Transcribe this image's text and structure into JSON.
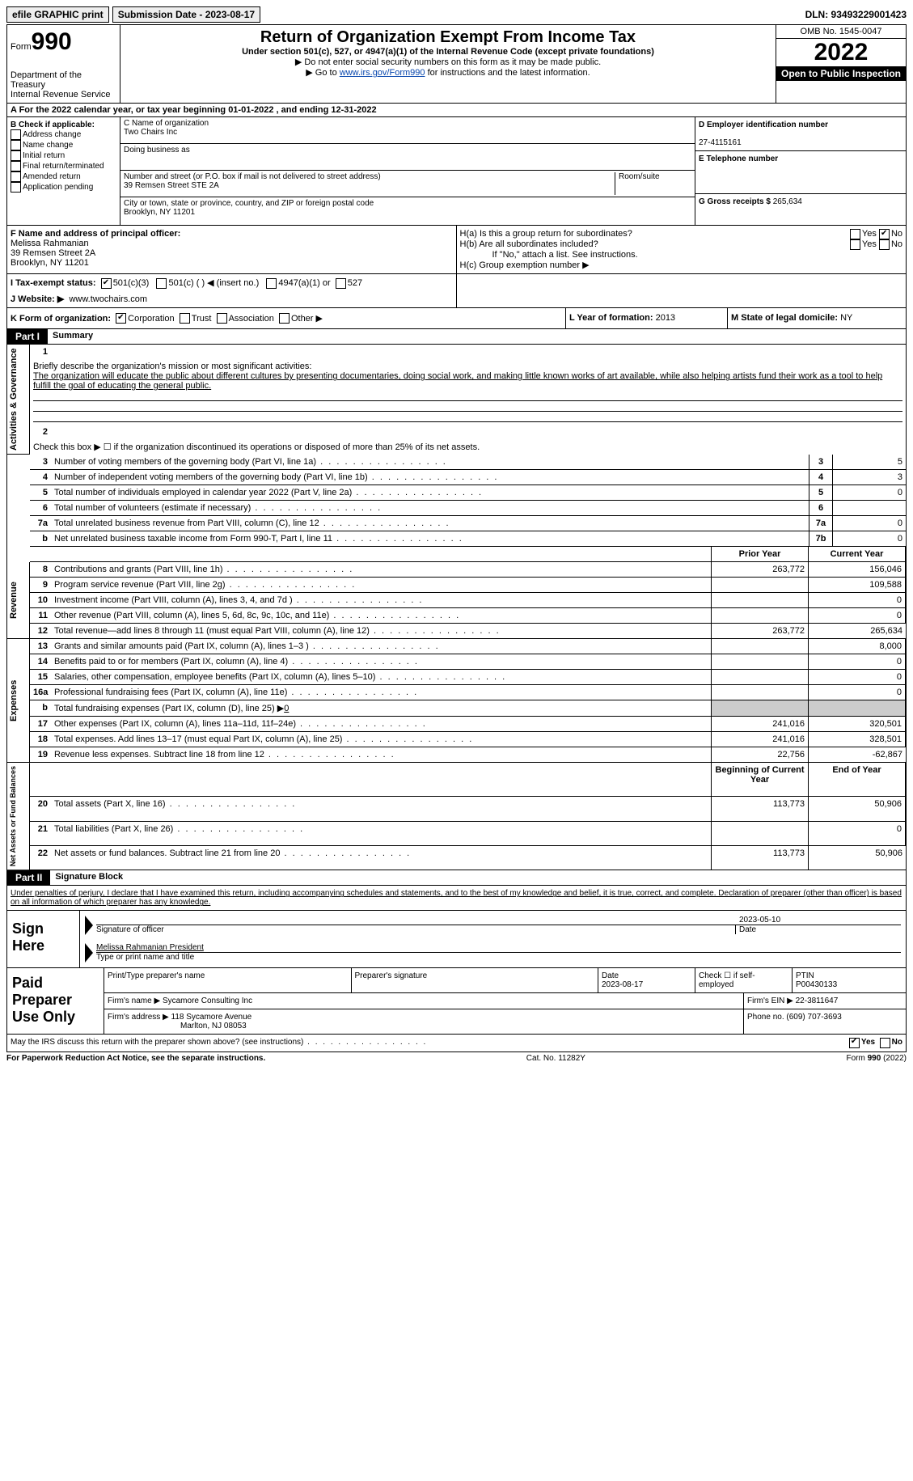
{
  "topbar": {
    "efile": "efile GRAPHIC print",
    "submission_label": "Submission Date - 2023-08-17",
    "dln": "DLN: 93493229001423"
  },
  "header": {
    "form_label": "Form",
    "form_num": "990",
    "dept": "Department of the Treasury",
    "irs": "Internal Revenue Service",
    "title": "Return of Organization Exempt From Income Tax",
    "sub1": "Under section 501(c), 527, or 4947(a)(1) of the Internal Revenue Code (except private foundations)",
    "sub2": "▶ Do not enter social security numbers on this form as it may be made public.",
    "sub3_pre": "▶ Go to ",
    "sub3_link": "www.irs.gov/Form990",
    "sub3_post": " for instructions and the latest information.",
    "omb": "OMB No. 1545-0047",
    "year": "2022",
    "open": "Open to Public Inspection"
  },
  "rowA": "A For the 2022 calendar year, or tax year beginning 01-01-2022   , and ending 12-31-2022",
  "B": {
    "label": "B Check if applicable:",
    "opts": [
      "Address change",
      "Name change",
      "Initial return",
      "Final return/terminated",
      "Amended return",
      "Application pending"
    ]
  },
  "C": {
    "name_label": "C Name of organization",
    "name": "Two Chairs Inc",
    "dba": "Doing business as",
    "addr_label": "Number and street (or P.O. box if mail is not delivered to street address)",
    "room": "Room/suite",
    "addr": "39 Remsen Street STE 2A",
    "city_label": "City or town, state or province, country, and ZIP or foreign postal code",
    "city": "Brooklyn, NY  11201"
  },
  "D": {
    "label": "D Employer identification number",
    "val": "27-4115161"
  },
  "E": {
    "label": "E Telephone number",
    "val": ""
  },
  "G": {
    "label": "G Gross receipts $",
    "val": "265,634"
  },
  "F": {
    "label": "F  Name and address of principal officer:",
    "name": "Melissa Rahmanian",
    "addr1": "39 Remsen Street 2A",
    "addr2": "Brooklyn, NY  11201"
  },
  "H": {
    "a": "H(a)  Is this a group return for subordinates?",
    "b": "H(b)  Are all subordinates included?",
    "b_note": "If \"No,\" attach a list. See instructions.",
    "c": "H(c)  Group exemption number ▶"
  },
  "I": {
    "label": "I   Tax-exempt status:",
    "o1": "501(c)(3)",
    "o2": "501(c) (  ) ◀ (insert no.)",
    "o3": "4947(a)(1) or",
    "o4": "527"
  },
  "J": {
    "label": "J   Website: ▶",
    "val": "www.twochairs.com"
  },
  "K": {
    "label": "K Form of organization:",
    "o1": "Corporation",
    "o2": "Trust",
    "o3": "Association",
    "o4": "Other ▶"
  },
  "L": {
    "label": "L Year of formation:",
    "val": "2013"
  },
  "M": {
    "label": "M State of legal domicile:",
    "val": "NY"
  },
  "partI": {
    "hdr": "Part I",
    "title": "Summary"
  },
  "s1": {
    "label": "Briefly describe the organization's mission or most significant activities:",
    "text": "The organization will educate the public about different cultures by presenting documentaries, doing social work, and making little known works of art available, while also helping artists fund their work as a tool to help fulfill the goal of educating the general public."
  },
  "s2": "Check this box ▶ ☐  if the organization discontinued its operations or disposed of more than 25% of its net assets.",
  "lines_small": [
    {
      "n": "3",
      "lbl": "Number of voting members of the governing body (Part VI, line 1a)",
      "box": "3",
      "val": "5"
    },
    {
      "n": "4",
      "lbl": "Number of independent voting members of the governing body (Part VI, line 1b)",
      "box": "4",
      "val": "3"
    },
    {
      "n": "5",
      "lbl": "Total number of individuals employed in calendar year 2022 (Part V, line 2a)",
      "box": "5",
      "val": "0"
    },
    {
      "n": "6",
      "lbl": "Total number of volunteers (estimate if necessary)",
      "box": "6",
      "val": ""
    },
    {
      "n": "7a",
      "lbl": "Total unrelated business revenue from Part VIII, column (C), line 12",
      "box": "7a",
      "val": "0"
    },
    {
      "n": "b",
      "lbl": "Net unrelated business taxable income from Form 990-T, Part I, line 11",
      "box": "7b",
      "val": "0"
    }
  ],
  "col_hdr": {
    "prior": "Prior Year",
    "curr": "Current Year"
  },
  "revenue": [
    {
      "n": "8",
      "lbl": "Contributions and grants (Part VIII, line 1h)",
      "p": "263,772",
      "c": "156,046"
    },
    {
      "n": "9",
      "lbl": "Program service revenue (Part VIII, line 2g)",
      "p": "",
      "c": "109,588"
    },
    {
      "n": "10",
      "lbl": "Investment income (Part VIII, column (A), lines 3, 4, and 7d )",
      "p": "",
      "c": "0"
    },
    {
      "n": "11",
      "lbl": "Other revenue (Part VIII, column (A), lines 5, 6d, 8c, 9c, 10c, and 11e)",
      "p": "",
      "c": "0"
    },
    {
      "n": "12",
      "lbl": "Total revenue—add lines 8 through 11 (must equal Part VIII, column (A), line 12)",
      "p": "263,772",
      "c": "265,634"
    }
  ],
  "expenses": [
    {
      "n": "13",
      "lbl": "Grants and similar amounts paid (Part IX, column (A), lines 1–3 )",
      "p": "",
      "c": "8,000"
    },
    {
      "n": "14",
      "lbl": "Benefits paid to or for members (Part IX, column (A), line 4)",
      "p": "",
      "c": "0"
    },
    {
      "n": "15",
      "lbl": "Salaries, other compensation, employee benefits (Part IX, column (A), lines 5–10)",
      "p": "",
      "c": "0"
    },
    {
      "n": "16a",
      "lbl": "Professional fundraising fees (Part IX, column (A), line 11e)",
      "p": "",
      "c": "0"
    }
  ],
  "exp_b": {
    "n": "b",
    "lbl": "Total fundraising expenses (Part IX, column (D), line 25) ▶",
    "val": "0"
  },
  "expenses2": [
    {
      "n": "17",
      "lbl": "Other expenses (Part IX, column (A), lines 11a–11d, 11f–24e)",
      "p": "241,016",
      "c": "320,501"
    },
    {
      "n": "18",
      "lbl": "Total expenses. Add lines 13–17 (must equal Part IX, column (A), line 25)",
      "p": "241,016",
      "c": "328,501"
    },
    {
      "n": "19",
      "lbl": "Revenue less expenses. Subtract line 18 from line 12",
      "p": "22,756",
      "c": "-62,867"
    }
  ],
  "col_hdr2": {
    "beg": "Beginning of Current Year",
    "end": "End of Year"
  },
  "netassets": [
    {
      "n": "20",
      "lbl": "Total assets (Part X, line 16)",
      "p": "113,773",
      "c": "50,906"
    },
    {
      "n": "21",
      "lbl": "Total liabilities (Part X, line 26)",
      "p": "",
      "c": "0"
    },
    {
      "n": "22",
      "lbl": "Net assets or fund balances. Subtract line 21 from line 20",
      "p": "113,773",
      "c": "50,906"
    }
  ],
  "vtabs": {
    "gov": "Activities & Governance",
    "rev": "Revenue",
    "exp": "Expenses",
    "net": "Net Assets or Fund Balances"
  },
  "partII": {
    "hdr": "Part II",
    "title": "Signature Block"
  },
  "penalties": "Under penalties of perjury, I declare that I have examined this return, including accompanying schedules and statements, and to the best of my knowledge and belief, it is true, correct, and complete. Declaration of preparer (other than officer) is based on all information of which preparer has any knowledge.",
  "sign": {
    "left": "Sign Here",
    "sig_label": "Signature of officer",
    "date": "2023-05-10",
    "date_label": "Date",
    "name": "Melissa Rahmanian  President",
    "name_label": "Type or print name and title"
  },
  "prep": {
    "left": "Paid Preparer Use Only",
    "r1": {
      "c1": "Print/Type preparer's name",
      "c2": "Preparer's signature",
      "c3l": "Date",
      "c3v": "2023-08-17",
      "c4": "Check ☐ if self-employed",
      "c5l": "PTIN",
      "c5v": "P00430133"
    },
    "r2": {
      "c1l": "Firm's name   ▶",
      "c1v": "Sycamore Consulting Inc",
      "c2l": "Firm's EIN ▶",
      "c2v": "22-3811647"
    },
    "r3": {
      "c1l": "Firm's address ▶",
      "c1v1": "118 Sycamore Avenue",
      "c1v2": "Marlton, NJ  08053",
      "c2l": "Phone no.",
      "c2v": "(609) 707-3693"
    }
  },
  "discuss": "May the IRS discuss this return with the preparer shown above? (see instructions)",
  "yes": "Yes",
  "no": "No",
  "footer": {
    "l": "For Paperwork Reduction Act Notice, see the separate instructions.",
    "m": "Cat. No. 11282Y",
    "r": "Form 990 (2022)"
  }
}
